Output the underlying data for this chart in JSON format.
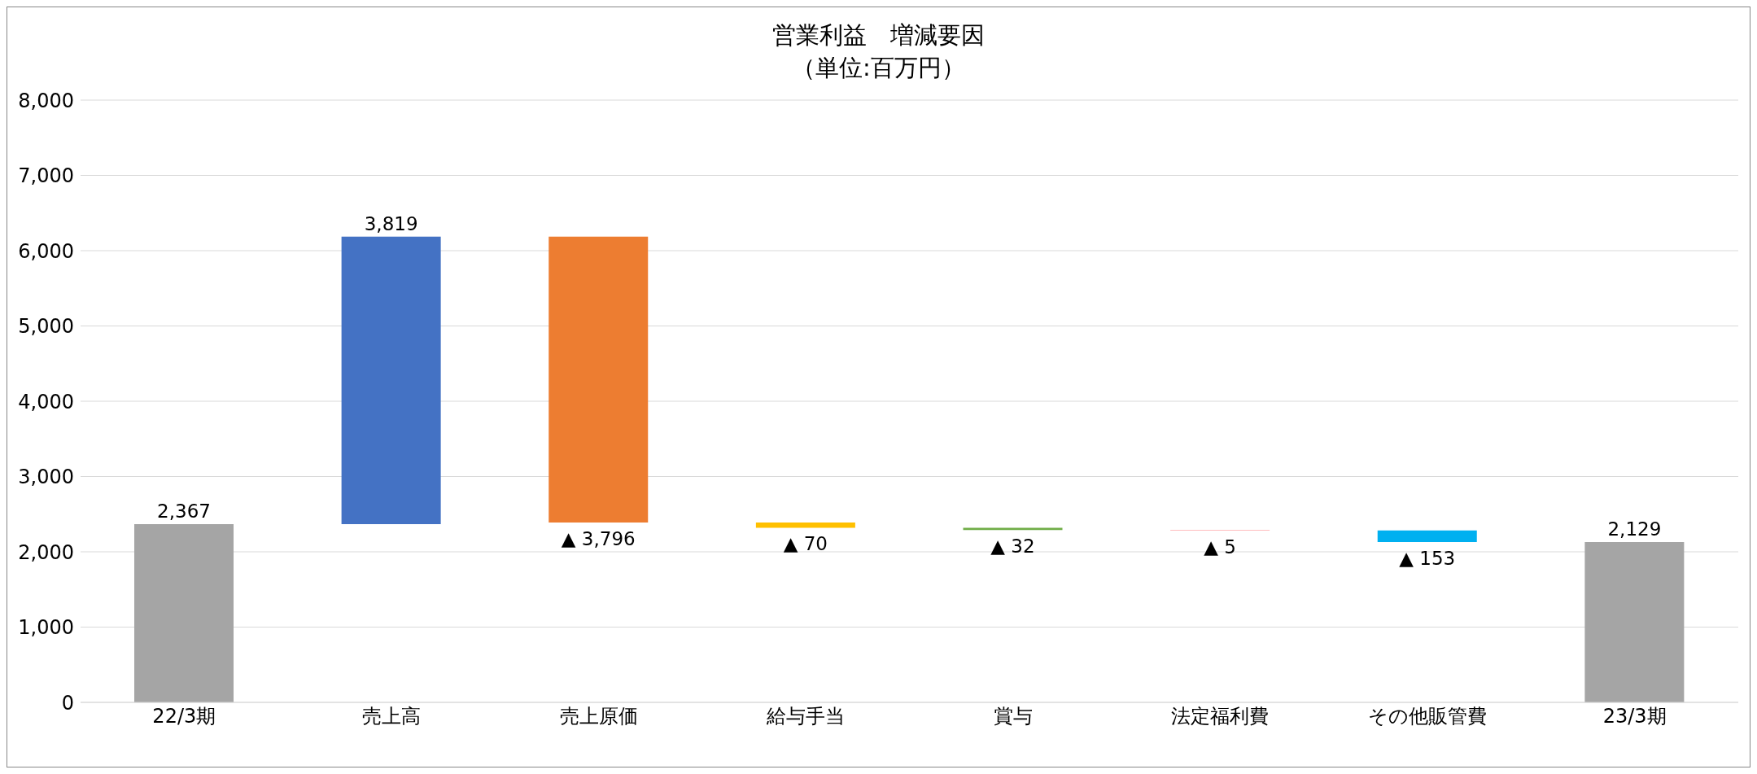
{
  "chart_data": {
    "type": "bar",
    "title": "営業利益　増減要因",
    "subtitle": "（単位:百万円）",
    "categories": [
      "22/3期",
      "売上高",
      "売上原価",
      "給与手当",
      "賞与",
      "法定福利費",
      "その他販管費",
      "23/3期"
    ],
    "values": [
      2367,
      3819,
      -3796,
      -70,
      -32,
      -5,
      -153,
      2129
    ],
    "base": [
      0,
      2367,
      6186,
      2390,
      2320,
      2288,
      2283,
      0
    ],
    "colors": [
      "#a5a5a5",
      "#4472c4",
      "#ed7d31",
      "#ffc000",
      "#70ad47",
      "#ff7c80",
      "#00b0f0",
      "#a5a5a5"
    ],
    "value_labels": [
      "2,367",
      "3,819",
      "▲ 3,796",
      "▲ 70",
      "▲ 32",
      "▲ 5",
      "▲ 153",
      "2,129"
    ],
    "ylim": [
      0,
      8000
    ],
    "yticks": [
      {
        "value": 0,
        "label": "0"
      },
      {
        "value": 1000,
        "label": "1,000"
      },
      {
        "value": 2000,
        "label": "2,000"
      },
      {
        "value": 3000,
        "label": "3,000"
      },
      {
        "value": 4000,
        "label": "4,000"
      },
      {
        "value": 5000,
        "label": "5,000"
      },
      {
        "value": 6000,
        "label": "6,000"
      },
      {
        "value": 7000,
        "label": "7,000"
      },
      {
        "value": 8000,
        "label": "8,000"
      }
    ],
    "grid": "y"
  }
}
